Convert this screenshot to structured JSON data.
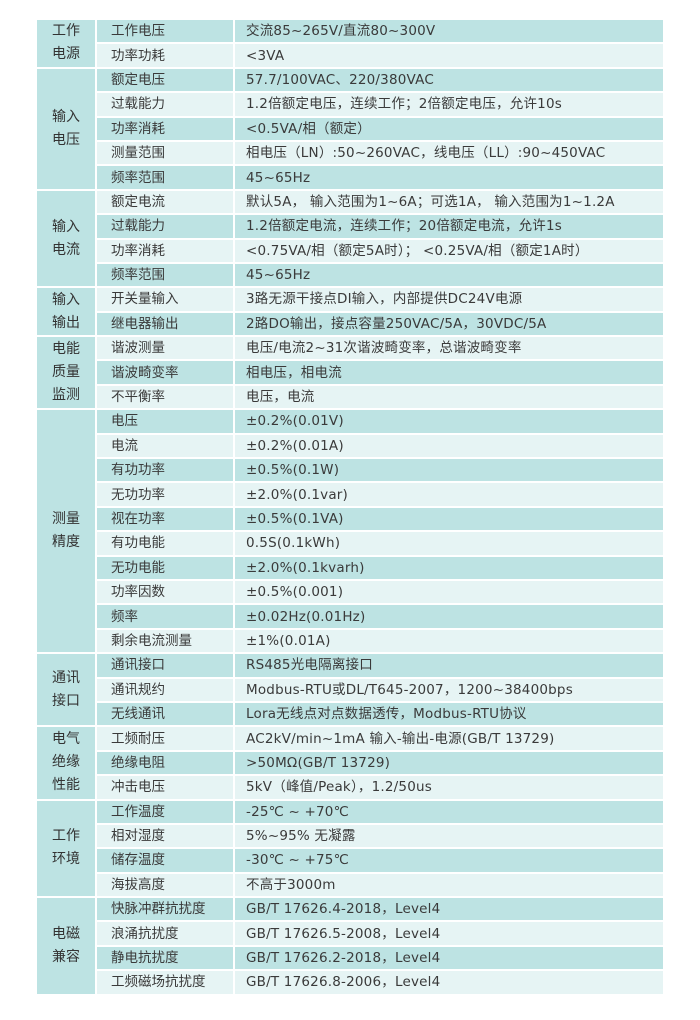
{
  "colors": {
    "dark_row": "#bde3e3",
    "light_row": "#e6f4f4",
    "text": "#3a3a3a"
  },
  "groups": [
    {
      "category": "工作\n电源",
      "rows": [
        [
          "工作电压",
          "交流85~265V/直流80~300V"
        ],
        [
          "功率功耗",
          "<3VA"
        ]
      ]
    },
    {
      "category": "输入\n电压",
      "rows": [
        [
          "额定电压",
          "57.7/100VAC、220/380VAC"
        ],
        [
          "过载能力",
          "1.2倍额定电压，连续工作；2倍额定电压，允许10s"
        ],
        [
          "功率消耗",
          "<0.5VA/相（额定）"
        ],
        [
          "测量范围",
          "相电压（LN）:50~260VAC，线电压（LL）:90~450VAC"
        ],
        [
          "频率范围",
          "45~65Hz"
        ]
      ]
    },
    {
      "category": "输入\n电流",
      "rows": [
        [
          "额定电流",
          "默认5A， 输入范围为1~6A；可选1A， 输入范围为1~1.2A"
        ],
        [
          "过载能力",
          "1.2倍额定电流，连续工作；20倍额定电流，允许1s"
        ],
        [
          "功率消耗",
          "<0.75VA/相（额定5A时）； <0.25VA/相（额定1A时）"
        ],
        [
          "频率范围",
          "45~65Hz"
        ]
      ]
    },
    {
      "category": "输入\n输出",
      "rows": [
        [
          "开关量输入",
          "3路无源干接点DI输入，内部提供DC24V电源"
        ],
        [
          "继电器输出",
          "2路DO输出，接点容量250VAC/5A，30VDC/5A"
        ]
      ]
    },
    {
      "category": "电能\n质量\n监测",
      "rows": [
        [
          "谐波测量",
          "电压/电流2~31次谐波畸变率，总谐波畸变率"
        ],
        [
          "谐波畸变率",
          "相电压，相电流"
        ],
        [
          "不平衡率",
          "电压，电流"
        ]
      ]
    },
    {
      "category": "测量\n精度",
      "rows": [
        [
          "电压",
          "±0.2%(0.01V)"
        ],
        [
          "电流",
          "±0.2%(0.01A)"
        ],
        [
          "有功功率",
          "±0.5%(0.1W)"
        ],
        [
          "无功功率",
          "±2.0%(0.1var)"
        ],
        [
          "视在功率",
          "±0.5%(0.1VA)"
        ],
        [
          "有功电能",
          "0.5S(0.1kWh)"
        ],
        [
          "无功电能",
          "±2.0%(0.1kvarh)"
        ],
        [
          "功率因数",
          "±0.5%(0.001)"
        ],
        [
          "频率",
          "±0.02Hz(0.01Hz)"
        ],
        [
          "剩余电流测量",
          "±1%(0.01A)"
        ]
      ]
    },
    {
      "category": "通讯\n接口",
      "rows": [
        [
          "通讯接口",
          "RS485光电隔离接口"
        ],
        [
          "通讯规约",
          "Modbus-RTU或DL/T645-2007，1200~38400bps"
        ],
        [
          "无线通讯",
          "Lora无线点对点数据透传，Modbus-RTU协议"
        ]
      ]
    },
    {
      "category": "电气\n绝缘\n性能",
      "rows": [
        [
          "工频耐压",
          "AC2kV/min~1mA 输入-输出-电源(GB/T 13729)"
        ],
        [
          "绝缘电阻",
          ">50MΩ(GB/T 13729)"
        ],
        [
          "冲击电压",
          "5kV（峰值/Peak），1.2/50us"
        ]
      ]
    },
    {
      "category": "工作\n环境",
      "rows": [
        [
          "工作温度",
          "-25℃ ~ +70℃"
        ],
        [
          "相对湿度",
          "5%~95% 无凝露"
        ],
        [
          "储存温度",
          "-30℃ ~ +75℃"
        ],
        [
          "海拔高度",
          "不高于3000m"
        ]
      ]
    },
    {
      "category": "电磁\n兼容",
      "rows": [
        [
          "快脉冲群抗扰度",
          "GB/T 17626.4-2018，Level4"
        ],
        [
          "浪涌抗扰度",
          "GB/T 17626.5-2008，Level4"
        ],
        [
          "静电抗扰度",
          "GB/T 17626.2-2018，Level4"
        ],
        [
          "工频磁场抗扰度",
          "GB/T 17626.8-2006，Level4"
        ]
      ]
    }
  ]
}
